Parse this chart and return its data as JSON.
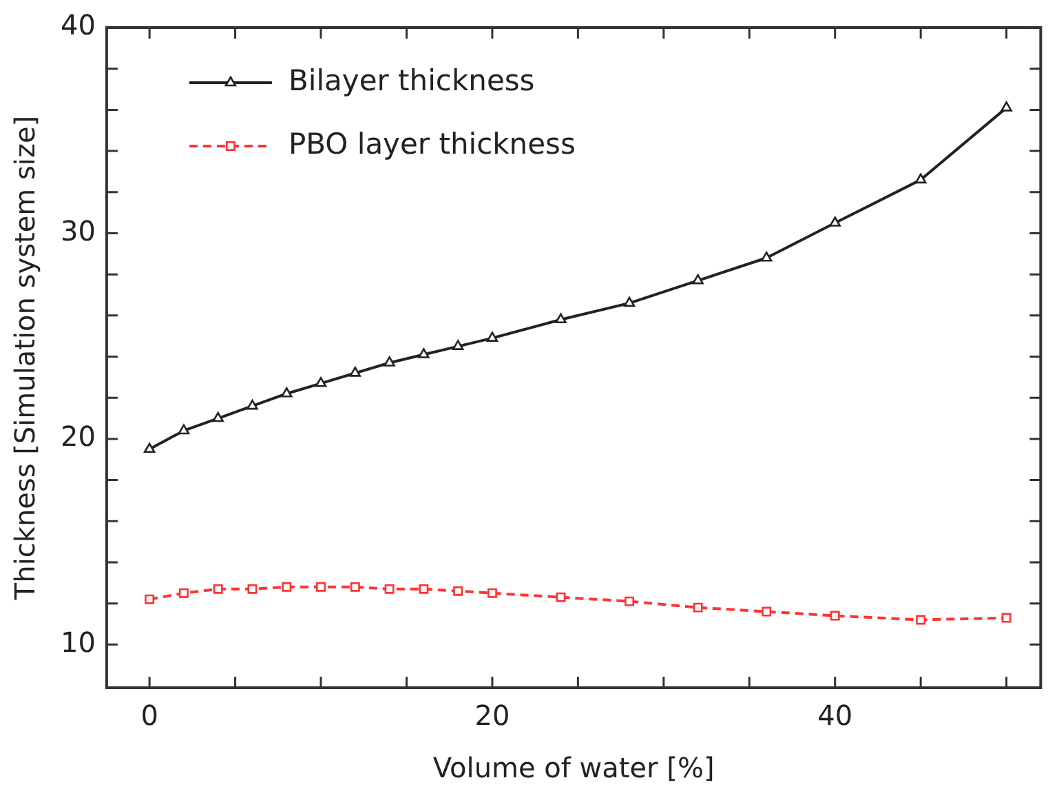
{
  "chart_data": {
    "type": "line",
    "xlabel": "Volume of water [%]",
    "ylabel": "Thickness [Simulation system size]",
    "x": [
      0,
      2,
      4,
      6,
      8,
      10,
      12,
      14,
      16,
      18,
      20,
      24,
      28,
      32,
      36,
      40,
      45,
      50
    ],
    "series": [
      {
        "name": "Bilayer thickness",
        "color": "#222222",
        "marker": "triangle",
        "line_style": "solid",
        "values": [
          19.5,
          20.4,
          21.0,
          21.6,
          22.2,
          22.7,
          23.2,
          23.7,
          24.1,
          24.5,
          24.9,
          25.8,
          26.6,
          27.7,
          28.8,
          30.5,
          32.6,
          36.1
        ]
      },
      {
        "name": "PBO layer thickness",
        "color": "#ff3333",
        "marker": "square",
        "line_style": "dashed",
        "values": [
          12.2,
          12.5,
          12.7,
          12.7,
          12.8,
          12.8,
          12.8,
          12.7,
          12.7,
          12.6,
          12.5,
          12.3,
          12.1,
          11.8,
          11.6,
          11.4,
          11.2,
          11.3
        ]
      }
    ],
    "xlim": [
      -2.5,
      52
    ],
    "xticks": [
      0,
      {
        "value": 5,
        "label": null
      },
      {
        "value": 10,
        "label": null
      },
      {
        "value": 15,
        "label": null
      },
      20,
      {
        "value": 25,
        "label": null
      },
      {
        "value": 30,
        "label": null
      },
      {
        "value": 35,
        "label": null
      },
      40,
      {
        "value": 45,
        "label": null
      },
      {
        "value": 50,
        "label": null
      }
    ],
    "ylim": [
      7.9,
      40
    ],
    "yticks": [
      10,
      {
        "value": 12,
        "label": null
      },
      {
        "value": 14,
        "label": null
      },
      {
        "value": 16,
        "label": null
      },
      {
        "value": 18,
        "label": null
      },
      20,
      {
        "value": 22,
        "label": null
      },
      {
        "value": 24,
        "label": null
      },
      {
        "value": 26,
        "label": null
      },
      {
        "value": 28,
        "label": null
      },
      30,
      {
        "value": 32,
        "label": null
      },
      {
        "value": 34,
        "label": null
      },
      {
        "value": 36,
        "label": null
      },
      {
        "value": 38,
        "label": null
      },
      40
    ],
    "grid": false,
    "legend": "top left"
  }
}
